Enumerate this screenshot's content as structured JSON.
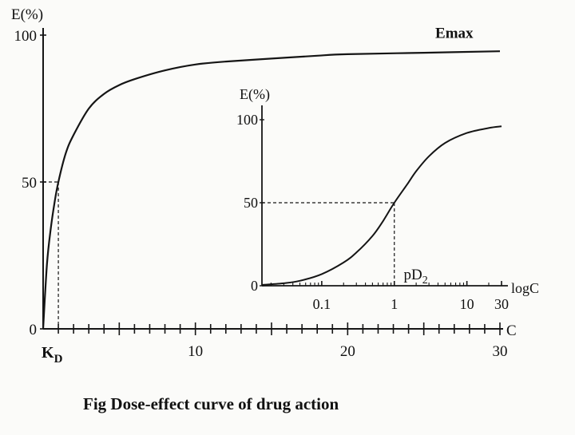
{
  "chart_data": [
    {
      "type": "line",
      "title": "",
      "ylabel": "E(%)",
      "xlabel": "C",
      "xlim": [
        0,
        30
      ],
      "ylim": [
        0,
        100
      ],
      "y_ticks": [
        "0",
        "50",
        "100"
      ],
      "x_tick_labels": [
        "10",
        "20",
        "30"
      ],
      "x_tick_label_values": [
        10,
        20,
        30
      ],
      "grid": false,
      "annotations": [
        {
          "text": "Emax",
          "x": 27,
          "y": 96
        },
        {
          "text": "K",
          "subscript": "D",
          "x": 1,
          "y": 0
        }
      ],
      "reference_point": {
        "name": "KD",
        "x": 1,
        "y": 50
      },
      "series": [
        {
          "x": [
            0,
            0.25,
            0.5,
            0.75,
            1,
            1.5,
            2,
            3,
            4,
            5,
            6,
            8,
            10,
            12,
            15,
            18,
            20,
            25,
            30
          ],
          "y": [
            0,
            22,
            34,
            43,
            50,
            60,
            66,
            75,
            80,
            83,
            85,
            88,
            90,
            91,
            92,
            93,
            93.5,
            94,
            94.5
          ]
        }
      ]
    },
    {
      "type": "line",
      "title": "",
      "ylabel": "E(%)",
      "xlabel": "logC",
      "xscale": "log",
      "xlim": [
        0.015,
        30
      ],
      "ylim": [
        0,
        100
      ],
      "y_ticks": [
        "0",
        "50",
        "100"
      ],
      "x_tick_labels": [
        "0.1",
        "1",
        "10",
        "30"
      ],
      "x_tick_label_values": [
        0.1,
        1,
        10,
        30
      ],
      "grid": false,
      "annotations": [
        {
          "text": "pD",
          "subscript": "2",
          "x": 1.1,
          "y": 5
        }
      ],
      "reference_point": {
        "name": "pD2",
        "x": 1,
        "y": 50
      },
      "series": [
        {
          "x": [
            0.015,
            0.03,
            0.05,
            0.1,
            0.2,
            0.3,
            0.5,
            0.7,
            1,
            1.5,
            2,
            3,
            5,
            10,
            20,
            30
          ],
          "y": [
            0.5,
            1.5,
            3,
            7,
            14,
            20,
            30,
            39,
            50,
            61,
            69,
            78,
            86,
            92,
            95,
            96
          ]
        }
      ]
    }
  ],
  "caption": "Fig Dose-effect curve of drug action"
}
